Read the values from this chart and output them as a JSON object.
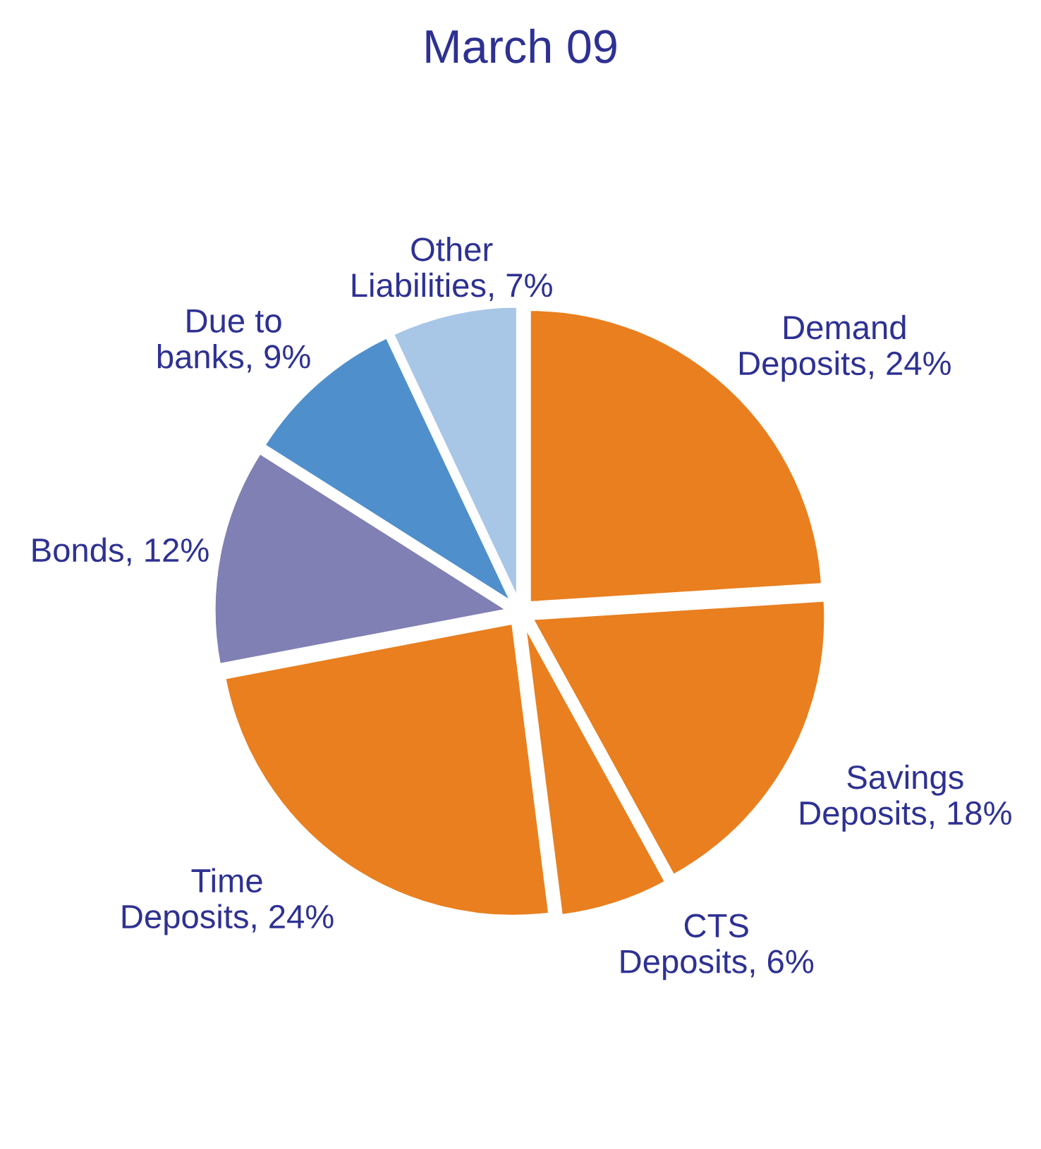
{
  "chart_data": {
    "type": "pie",
    "title": "March 09",
    "categories": [
      "Demand\nDeposits",
      "Savings\nDeposits",
      "CTS\nDeposits",
      "Time\nDeposits",
      "Bonds",
      "Due to\nbanks",
      "Other\nLiabilities"
    ],
    "values": [
      24,
      18,
      6,
      24,
      12,
      9,
      7
    ],
    "value_labels": [
      "24%",
      "18%",
      "6%",
      "24%",
      "12%",
      "9%",
      "7%"
    ],
    "colors": [
      "#e97f1f",
      "#e97f1f",
      "#e97f1f",
      "#e97f1f",
      "#8080b4",
      "#4f90cc",
      "#a8c6e6"
    ]
  }
}
